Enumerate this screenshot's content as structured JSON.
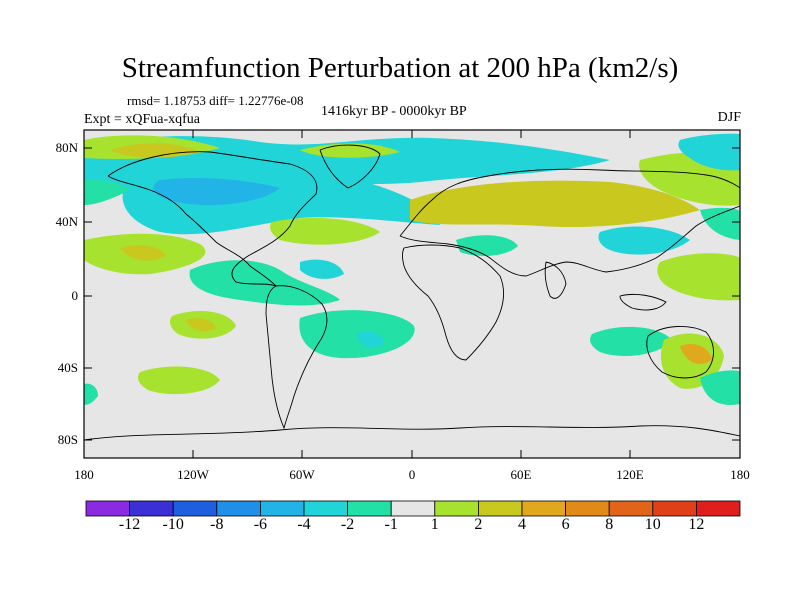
{
  "title": "Streamfunction Perturbation at 200 hPa (km2/s)",
  "stats": "rmsd= 1.18753 diff= 1.22776e-08",
  "experiment": "Expt = xQFua-xqfua",
  "period": "1416kyr BP - 0000kyr BP",
  "season": "DJF",
  "lat_labels": [
    "80N",
    "40N",
    "0",
    "40S",
    "80S"
  ],
  "lon_labels": [
    "180",
    "120W",
    "60W",
    "0",
    "60E",
    "120E",
    "180"
  ],
  "colorbar": {
    "labels": [
      "-12",
      "-10",
      "-8",
      "-6",
      "-4",
      "-2",
      "-1",
      "1",
      "2",
      "4",
      "6",
      "8",
      "10",
      "12"
    ],
    "colors": [
      "#8a2be2",
      "#3b2fd6",
      "#1e5fe0",
      "#1f8fe8",
      "#22b4e6",
      "#20d4d8",
      "#22e0a6",
      "#e6e6e6",
      "#a6e22e",
      "#c8c81e",
      "#e0a81e",
      "#e08a1a",
      "#e0641a",
      "#e04018",
      "#e01e1e"
    ]
  },
  "colors": {
    "background": "#e6e6e6",
    "neg_weak": "#22e0a6",
    "neg_mid": "#20d4d8",
    "pos_weak": "#a6e22e",
    "pos_mid": "#c8c81e",
    "pos_strong": "#e0a81e"
  }
}
